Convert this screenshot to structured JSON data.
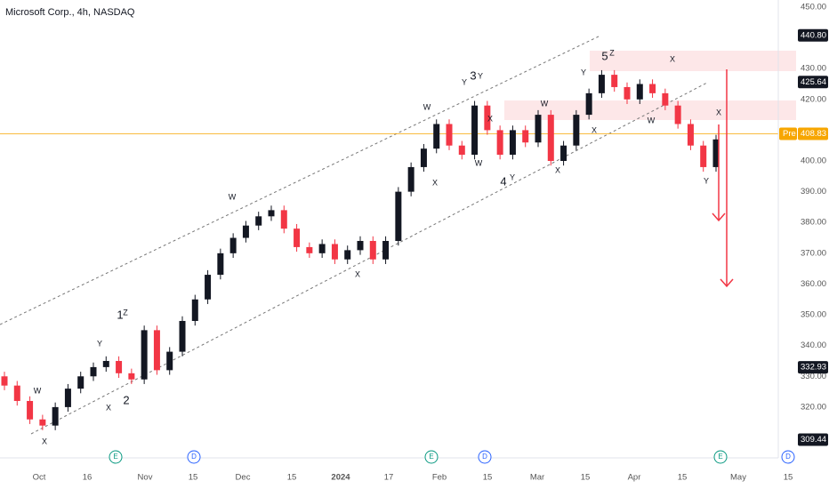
{
  "chart_data": {
    "type": "candlestick",
    "title": "Microsoft Corp., 4h, NASDAQ",
    "up_color": "#131722",
    "down_color": "#f23645",
    "open": [
      330,
      327,
      322,
      316,
      314,
      320,
      326,
      330,
      333,
      335,
      331,
      329,
      345,
      332,
      338,
      348,
      355,
      363,
      370,
      375,
      379,
      382,
      384,
      378,
      372,
      370,
      373,
      368,
      371,
      374,
      368,
      374,
      390,
      398,
      404,
      412,
      405,
      402,
      418,
      410,
      402,
      410,
      406,
      415,
      400,
      405,
      415,
      422,
      428,
      424,
      420,
      425,
      422,
      418,
      412,
      405,
      398
    ],
    "high": [
      331.5,
      328.5,
      323.5,
      317.5,
      321.5,
      327.5,
      331.5,
      334.5,
      336.5,
      336.5,
      332.5,
      346.5,
      346.5,
      339.5,
      349.5,
      356.5,
      364.5,
      371.5,
      376.5,
      380.5,
      383.5,
      385.5,
      385.5,
      379.5,
      373.5,
      374.5,
      374.5,
      372.5,
      375.5,
      375.5,
      375.5,
      391.5,
      399.5,
      405.5,
      413.5,
      413.5,
      406.5,
      419.5,
      419.5,
      411.5,
      411.5,
      411.5,
      416.5,
      416.5,
      406.5,
      416.5,
      423.5,
      429.5,
      429.5,
      425.5,
      426.5,
      426.5,
      423.5,
      419.5,
      413.5,
      406.5,
      408.5
    ],
    "low": [
      325.5,
      320.5,
      314.5,
      312.5,
      312.5,
      318.5,
      324.5,
      328.5,
      331.5,
      329.5,
      327.5,
      327.5,
      330.5,
      330.5,
      336.5,
      346.5,
      353.5,
      361.5,
      368.5,
      373.5,
      377.5,
      380.5,
      376.5,
      370.5,
      368.5,
      368.5,
      366.5,
      366.5,
      369.5,
      366.5,
      366.5,
      372.5,
      388.5,
      396.5,
      402.5,
      403.5,
      400.5,
      400.5,
      408.5,
      400.5,
      400.5,
      404.5,
      404.5,
      398.5,
      398.5,
      403.5,
      413.5,
      420.5,
      422.5,
      418.5,
      418.5,
      420.5,
      416.5,
      410.5,
      403.5,
      396.5,
      396.5
    ],
    "close": [
      327,
      322,
      316,
      314,
      320,
      326,
      330,
      333,
      335,
      331,
      329,
      345,
      332,
      338,
      348,
      355,
      363,
      370,
      375,
      379,
      382,
      384,
      378,
      372,
      370,
      373,
      368,
      371,
      374,
      368,
      374,
      390,
      398,
      404,
      412,
      405,
      402,
      418,
      410,
      402,
      410,
      406,
      415,
      400,
      405,
      415,
      422,
      428,
      424,
      420,
      425,
      422,
      418,
      412,
      405,
      398,
      407
    ],
    "ylim": [
      303.5,
      452.3
    ],
    "yticks": [
      {
        "value": 450,
        "label": "450.00"
      },
      {
        "value": 430,
        "label": "430.00"
      },
      {
        "value": 420,
        "label": "420.00"
      },
      {
        "value": 400,
        "label": "400.00"
      },
      {
        "value": 390,
        "label": "390.00"
      },
      {
        "value": 380,
        "label": "380.00"
      },
      {
        "value": 370,
        "label": "370.00"
      },
      {
        "value": 360,
        "label": "360.00"
      },
      {
        "value": 350,
        "label": "350.00"
      },
      {
        "value": 340,
        "label": "340.00"
      },
      {
        "value": 330,
        "label": "330.00"
      },
      {
        "value": 320,
        "label": "320.00"
      }
    ],
    "price_labels": [
      {
        "value": 440.8,
        "label": "440.80"
      },
      {
        "value": 425.64,
        "label": "425.64"
      },
      {
        "value": 332.93,
        "label": "332.93"
      },
      {
        "value": 309.44,
        "label": "309.44"
      }
    ],
    "current_price": {
      "value": 408.83,
      "label": "408.83",
      "tag": "Pre"
    },
    "x_labels": [
      "Oct",
      "16",
      "Nov",
      "15",
      "Dec",
      "15",
      "2024",
      "17",
      "Feb",
      "15",
      "Mar",
      "15",
      "Apr",
      "15",
      "May",
      "15"
    ],
    "events": [
      "E",
      "D",
      "E",
      "D",
      "E",
      "D"
    ],
    "annotations": [
      "W",
      "X",
      "Y",
      "1",
      "Z",
      "X",
      "2",
      "W",
      "X",
      "W",
      "X",
      "Y",
      "3",
      "Y",
      "X",
      "W",
      "4",
      "Y",
      "W",
      "X",
      "X",
      "5",
      "Z",
      "Y",
      "X",
      "W",
      "X",
      "Y"
    ]
  }
}
